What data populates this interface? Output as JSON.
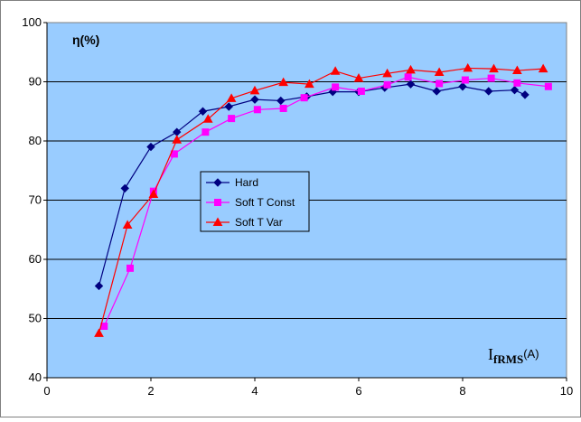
{
  "chart_data": {
    "type": "line",
    "title": "",
    "ylabel": "η(%)",
    "xlabel": {
      "main": "I",
      "subscript": "fRMS",
      "unit": "(A)"
    },
    "xlim": [
      0,
      10
    ],
    "ylim": [
      40,
      100
    ],
    "xticks": [
      0,
      2,
      4,
      6,
      8,
      10
    ],
    "yticks": [
      40,
      50,
      60,
      70,
      80,
      90,
      100
    ],
    "grid": "horizontal",
    "legend_position": "center-left",
    "plot_background": "#99CCFF",
    "series": [
      {
        "name": "Hard",
        "color": "#000080",
        "marker": "diamond",
        "x": [
          1.0,
          1.5,
          2.0,
          2.5,
          3.0,
          3.5,
          4.0,
          4.5,
          5.0,
          5.5,
          6.0,
          6.5,
          7.0,
          7.5,
          8.0,
          8.5,
          9.0,
          9.2
        ],
        "y": [
          55.5,
          72,
          79,
          81.5,
          85,
          85.8,
          87,
          86.8,
          87.5,
          88.3,
          88.3,
          89,
          89.6,
          88.4,
          89.2,
          88.4,
          88.6,
          87.8
        ]
      },
      {
        "name": "Soft T Const",
        "color": "#FF00FF",
        "marker": "square",
        "x": [
          1.1,
          1.6,
          2.05,
          2.45,
          3.05,
          3.55,
          4.05,
          4.55,
          4.95,
          5.55,
          6.05,
          6.55,
          6.95,
          7.55,
          8.05,
          8.55,
          9.05,
          9.65
        ],
        "y": [
          48.7,
          58.5,
          71.5,
          77.8,
          81.5,
          83.8,
          85.3,
          85.5,
          87.3,
          89.1,
          88.4,
          89.5,
          90.8,
          89.7,
          90.3,
          90.6,
          89.8,
          89.2
        ]
      },
      {
        "name": "Soft T Var",
        "color": "#FF0000",
        "marker": "triangle",
        "x": [
          1.0,
          1.55,
          2.05,
          2.5,
          3.1,
          3.55,
          4.0,
          4.55,
          5.05,
          5.55,
          6.0,
          6.55,
          7.0,
          7.55,
          8.1,
          8.6,
          9.05,
          9.55
        ],
        "y": [
          47.5,
          65.8,
          71,
          80.2,
          83.7,
          87.2,
          88.5,
          89.9,
          89.6,
          91.8,
          90.6,
          91.4,
          92,
          91.6,
          92.3,
          92.2,
          91.9,
          92.2
        ]
      }
    ]
  }
}
